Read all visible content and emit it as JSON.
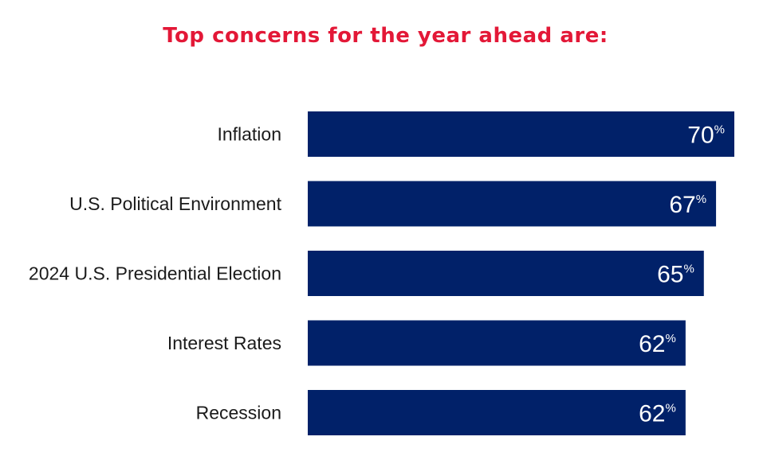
{
  "colors": {
    "title": "#e31837",
    "bar": "#012169",
    "label": "#1b1b1b",
    "value": "#ffffff"
  },
  "chart_data": {
    "type": "bar",
    "orientation": "horizontal",
    "title": "Top concerns for the year ahead are:",
    "categories": [
      "Inflation",
      "U.S. Political Environment",
      "2024 U.S. Presidential Election",
      "Interest Rates",
      "Recession"
    ],
    "values": [
      70,
      67,
      65,
      62,
      62
    ],
    "value_suffix": "%",
    "xlim": [
      0,
      70
    ],
    "grid": false,
    "legend": "none"
  }
}
